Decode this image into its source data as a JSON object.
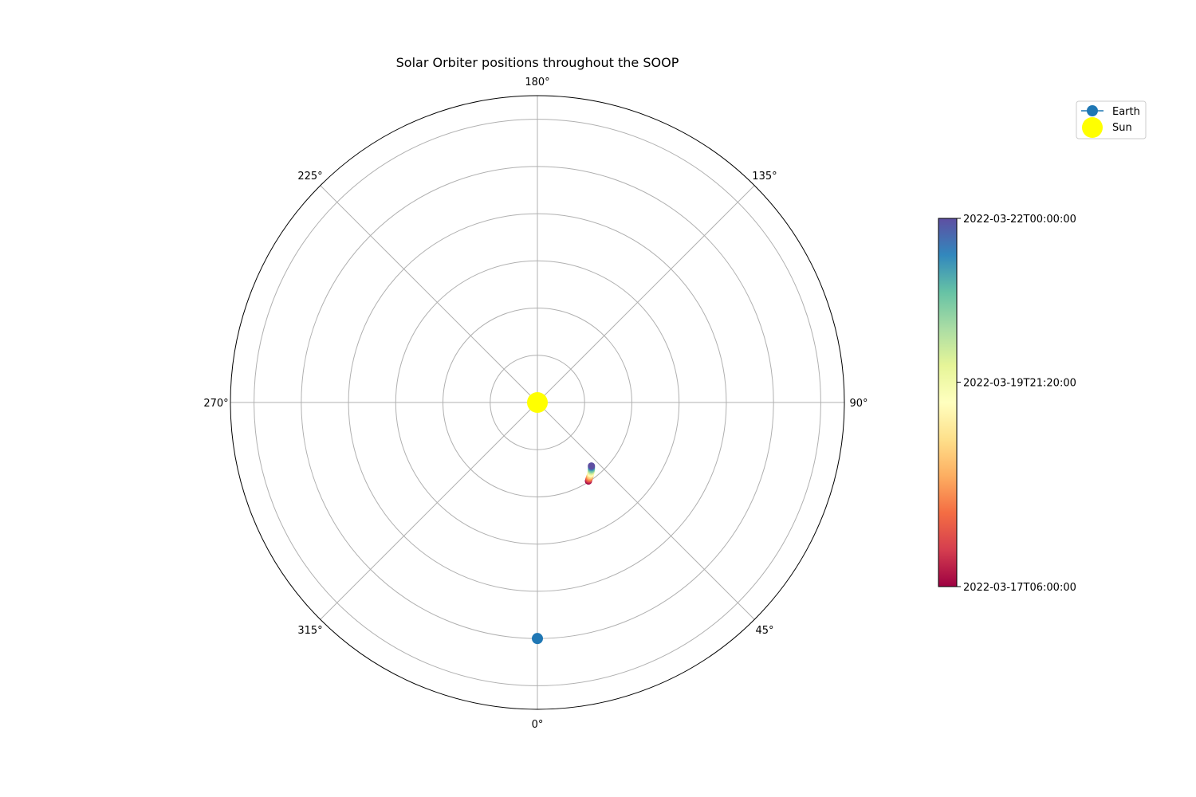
{
  "chart_data": {
    "type": "scatter",
    "projection": "polar",
    "title": "Solar Orbiter positions throughout the SOOP",
    "theta_zero_location": "bottom",
    "theta_direction": "counterclockwise",
    "theta_ticks": [
      0,
      45,
      90,
      135,
      180,
      225,
      270,
      315
    ],
    "theta_tick_labels": [
      "0°",
      "45°",
      "90°",
      "135°",
      "180°",
      "225°",
      "270°",
      "315°"
    ],
    "r_ticks": [
      0.2,
      0.4,
      0.6,
      0.8,
      1.0,
      1.2
    ],
    "rlim": [
      0,
      1.3
    ],
    "radial_tick_labels_visible": false,
    "grid": true,
    "legend": {
      "placement": "upper-right-outside",
      "entries": [
        {
          "label": "Earth",
          "color": "#1f77b4",
          "marker": "circle-with-line"
        },
        {
          "label": "Sun",
          "color": "#ffff00",
          "marker": "circle"
        }
      ]
    },
    "earth": {
      "theta_deg": 0,
      "r": 1.0,
      "color": "#1f77b4"
    },
    "sun": {
      "theta_deg": 0,
      "r": 0.0,
      "color": "#ffff00"
    },
    "solar_orbiter": {
      "colormap": "Spectral",
      "time_start": "2022-03-17T06:00:00",
      "time_end": "2022-03-22T00:00:00",
      "theta_deg": [
        33.0,
        33.5,
        34.0,
        34.6,
        35.2,
        35.8,
        36.4,
        37.0,
        37.6,
        38.1,
        38.6,
        39.1,
        39.6,
        40.0,
        40.4
      ],
      "r": [
        0.397,
        0.394,
        0.391,
        0.388,
        0.385,
        0.382,
        0.379,
        0.376,
        0.372,
        0.369,
        0.366,
        0.363,
        0.359,
        0.356,
        0.353
      ]
    },
    "colorbar": {
      "tick_labels": [
        "2022-03-17T06:00:00",
        "2022-03-19T21:20:00",
        "2022-03-22T00:00:00"
      ],
      "tick_fractions": [
        0.0,
        0.555,
        1.0
      ]
    }
  }
}
